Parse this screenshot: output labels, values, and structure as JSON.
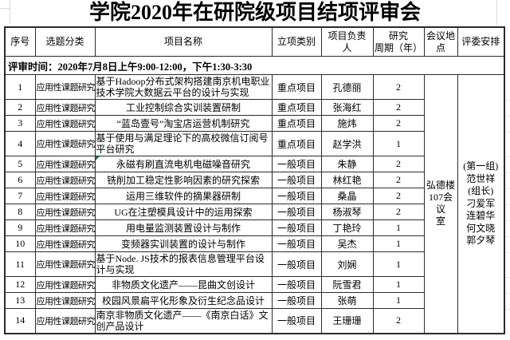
{
  "colors": {
    "border": "#2b2b2b",
    "grid": "#dcdcdc",
    "marker_green": "#1f7a33",
    "text": "#000000",
    "background": "#ffffff"
  },
  "page": {
    "title": "学院2020年在研院级项目结项评审会",
    "review_time": "评审时间：2020年7月8日上午9:00-12:00，下午1:30-3:30"
  },
  "table": {
    "headers": [
      "序号",
      "选题分类",
      "项目名称",
      "立项类别",
      "项目负责\n人",
      "研究\n周期（年）",
      "会议地\n点",
      "评委安排"
    ],
    "meeting_location": "弘德楼\n107会议\n室",
    "judges": [
      "(第一组)",
      "范世祥",
      "(组长)",
      "刁爱军",
      "连碧华",
      "何文晓",
      "郭夕琴"
    ],
    "rows": [
      {
        "no": "1",
        "category": "应用性课题研究",
        "name": "基于Hadoop分布式架构搭建南京机电职业技术学院大数据云平台的设计与实现",
        "type": "重点项目",
        "leader": "孔德丽",
        "period": "2"
      },
      {
        "no": "2",
        "category": "应用性课题研究",
        "name": "工业控制综合实训装置研制",
        "type": "重点项目",
        "leader": "张海红",
        "period": "2"
      },
      {
        "no": "3",
        "category": "应用性课题研究",
        "name": "“蓝岛壹号”淘宝店运营机制研究",
        "type": "重点项目",
        "leader": "施炜",
        "period": "2"
      },
      {
        "no": "4",
        "category": "应用性课题研究",
        "name": "基于使用与满足理论下的高校微信订阅号平台研究",
        "type": "重点项目",
        "leader": "赵学洪",
        "period": "1"
      },
      {
        "no": "5",
        "category": "应用性课题研究",
        "name": "永磁有刷直流电机电磁噪音研究",
        "type": "一般项目",
        "leader": "朱静",
        "period": "2",
        "marker": true
      },
      {
        "no": "6",
        "category": "应用性课题研究",
        "name": "铣削加工稳定性影响因素的研究探索",
        "type": "一般项目",
        "leader": "林红艳",
        "period": "2"
      },
      {
        "no": "7",
        "category": "应用性课题研究",
        "name": "运用三维软件的摘果器研制",
        "type": "一般项目",
        "leader": "桑晶",
        "period": "2"
      },
      {
        "no": "8",
        "category": "应用性课题研究",
        "name": "UG在注塑模具设计中的运用探索",
        "type": "一般项目",
        "leader": "杨淑琴",
        "period": "2"
      },
      {
        "no": "9",
        "category": "应用性课题研究",
        "name": "用电量监测装置设计与制作",
        "type": "一般项目",
        "leader": "丁艳玲",
        "period": "1"
      },
      {
        "no": "10",
        "category": "应用性课题研究",
        "name": "变频器实训装置的设计与制作",
        "type": "一般项目",
        "leader": "吴杰",
        "period": "1"
      },
      {
        "no": "11",
        "category": "应用性课题研究",
        "name": "基于Node. JS技术的报表信息管理平台设计与实现",
        "type": "一般项目",
        "leader": "刘娴",
        "period": "1"
      },
      {
        "no": "12",
        "category": "应用性课题研究",
        "name": "非物质文化遗产——昆曲文创设计",
        "type": "一般项目",
        "leader": "阮雪君",
        "period": "1"
      },
      {
        "no": "13",
        "category": "应用性课题研究",
        "name": "校园风景扁平化形象及衍生纪念品设计",
        "type": "一般项目",
        "leader": "张萌",
        "period": "1"
      },
      {
        "no": "14",
        "category": "应用性课题研究",
        "name": "南京非物质文化遗产——《南京白话》文创产品设计",
        "type": "一般项目",
        "leader": "王珊珊",
        "period": "2"
      }
    ]
  }
}
